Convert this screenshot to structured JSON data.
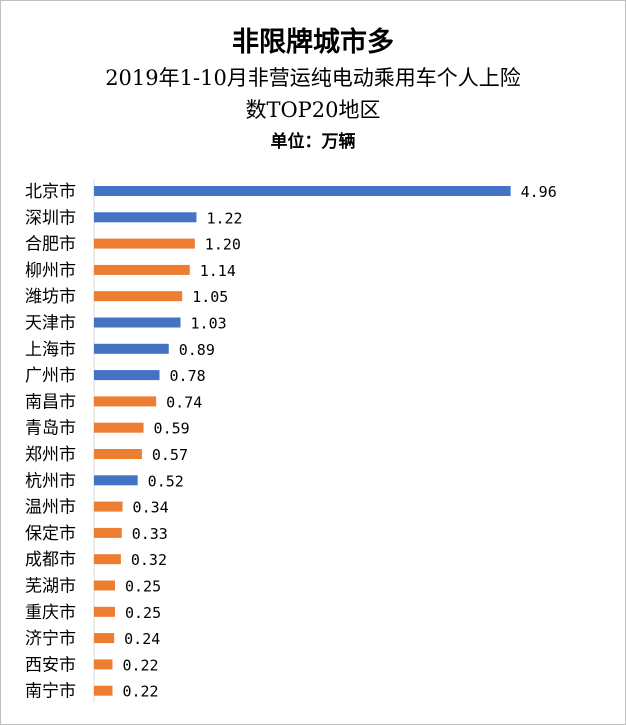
{
  "header": {
    "title": "非限牌城市多",
    "subtitle_line1": "2019年1-10月非营运纯电动乘用车个人上险",
    "subtitle_line2": "数TOP20地区",
    "unit": "单位：万辆"
  },
  "colors": {
    "blue": "#4472c4",
    "orange": "#ed7d31"
  },
  "chart_data": {
    "type": "bar",
    "orientation": "horizontal",
    "title": "非限牌城市多",
    "subtitle": "2019年1-10月非营运纯电动乘用车个人上险数TOP20地区",
    "unit": "单位：万辆",
    "categories": [
      "北京市",
      "深圳市",
      "合肥市",
      "柳州市",
      "潍坊市",
      "天津市",
      "上海市",
      "广州市",
      "南昌市",
      "青岛市",
      "郑州市",
      "杭州市",
      "温州市",
      "保定市",
      "成都市",
      "芜湖市",
      "重庆市",
      "济宁市",
      "西安市",
      "南宁市"
    ],
    "values": [
      4.96,
      1.22,
      1.2,
      1.14,
      1.05,
      1.03,
      0.89,
      0.78,
      0.74,
      0.59,
      0.57,
      0.52,
      0.34,
      0.33,
      0.32,
      0.25,
      0.25,
      0.24,
      0.22,
      0.22
    ],
    "value_labels": [
      "4.96",
      "1.22",
      "1.20",
      "1.14",
      "1.05",
      "1.03",
      "0.89",
      "0.78",
      "0.74",
      "0.59",
      "0.57",
      "0.52",
      "0.34",
      "0.33",
      "0.32",
      "0.25",
      "0.25",
      "0.24",
      "0.22",
      "0.22"
    ],
    "bar_colors": [
      "blue",
      "blue",
      "orange",
      "orange",
      "orange",
      "blue",
      "blue",
      "blue",
      "orange",
      "orange",
      "orange",
      "blue",
      "orange",
      "orange",
      "orange",
      "orange",
      "orange",
      "orange",
      "orange",
      "orange"
    ],
    "xlim": [
      0,
      5
    ],
    "grid": false,
    "legend": "none"
  }
}
